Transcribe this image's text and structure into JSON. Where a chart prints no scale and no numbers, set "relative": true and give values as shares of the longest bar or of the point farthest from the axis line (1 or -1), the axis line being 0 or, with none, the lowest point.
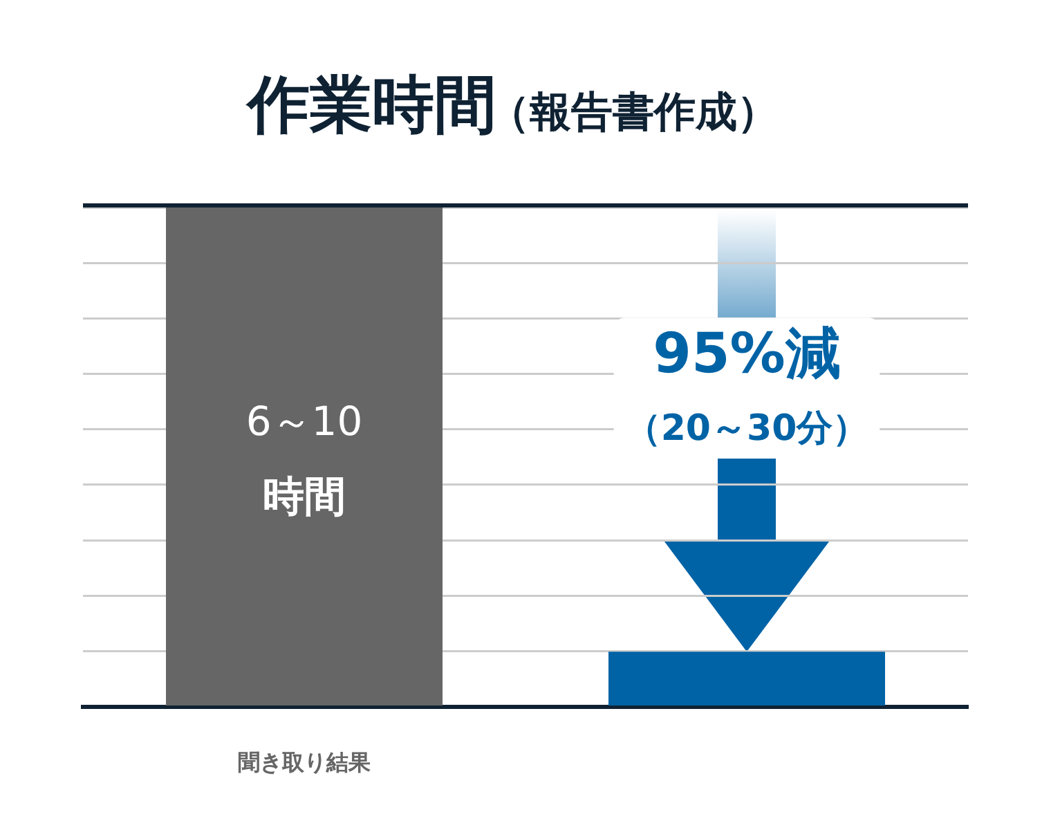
{
  "chart_data": {
    "type": "bar",
    "title": "作業時間",
    "subtitle": "（報告書作成）",
    "categories": [
      "聞き取り結果",
      null
    ],
    "values": [
      1,
      0.11
    ],
    "colors": [
      "#666666",
      "#0063a6"
    ],
    "relative": true,
    "annotations": [
      "6～10時間",
      "95%減（20～30分）"
    ],
    "grid": "y"
  }
}
